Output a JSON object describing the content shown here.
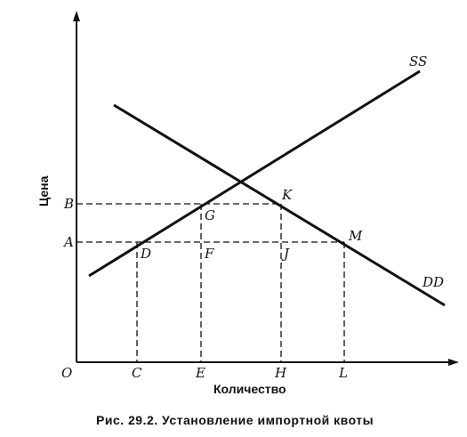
{
  "axes": {
    "y_title": "Цена",
    "x_title": "Количество",
    "origin": "O"
  },
  "price_labels": {
    "b": "B",
    "a": "A"
  },
  "quantity_labels": {
    "c": "C",
    "e": "E",
    "h": "H",
    "l": "L"
  },
  "points": {
    "g": "G",
    "k": "K",
    "d": "D",
    "f": "F",
    "j": "J",
    "m": "M"
  },
  "curves": {
    "supply": "SS",
    "demand": "DD"
  },
  "caption": "Рис. 29.2. Установление импортной квоты"
}
